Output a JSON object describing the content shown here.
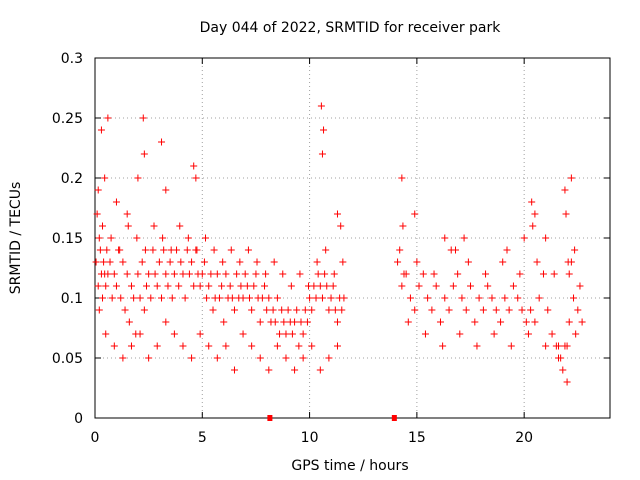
{
  "chart_data": {
    "type": "scatter",
    "title": "Day 044 of 2022, SRMTID for receiver park",
    "xlabel": "GPS time / hours",
    "ylabel": "SRMTID / TECUs",
    "xlim": [
      0,
      24
    ],
    "ylim": [
      0,
      0.3
    ],
    "x_ticks": [
      0,
      5,
      10,
      15,
      20
    ],
    "x_tick_labels": [
      "0",
      "5",
      "10",
      "15",
      "20"
    ],
    "y_ticks": [
      0,
      0.05,
      0.1,
      0.15,
      0.2,
      0.25,
      0.3
    ],
    "y_tick_labels": [
      "0",
      "0.05",
      "0.1",
      "0.15",
      "0.2",
      "0.25",
      "0.3"
    ],
    "grid": true,
    "marker": "+",
    "color": "#ff0000",
    "gap_markers_x": [
      8.15,
      13.95
    ],
    "series": [
      {
        "name": "SRMTID",
        "x": [
          0.05,
          0.1,
          0.15,
          0.2,
          0.25,
          0.3,
          0.35,
          0.4,
          0.45,
          0.5,
          0.55,
          0.6,
          0.7,
          0.8,
          0.9,
          1.0,
          1.1,
          1.2,
          1.3,
          1.4,
          1.5,
          1.6,
          1.7,
          1.8,
          1.9,
          2.0,
          2.1,
          2.2,
          2.3,
          2.4,
          2.5,
          2.6,
          2.7,
          2.8,
          2.9,
          3.0,
          3.1,
          3.2,
          3.3,
          3.4,
          3.5,
          3.6,
          3.7,
          3.8,
          3.9,
          4.0,
          4.1,
          4.2,
          4.3,
          4.4,
          4.5,
          4.6,
          4.7,
          4.8,
          4.9,
          5.0,
          5.1,
          5.2,
          5.3,
          5.4,
          5.5,
          5.6,
          5.7,
          5.8,
          5.9,
          6.0,
          6.1,
          6.2,
          6.3,
          6.4,
          6.5,
          6.6,
          6.7,
          6.8,
          6.9,
          7.0,
          7.1,
          7.2,
          7.3,
          7.4,
          7.5,
          7.6,
          7.7,
          7.8,
          7.9,
          8.0,
          8.1,
          8.2,
          8.3,
          8.4,
          8.5,
          8.6,
          8.7,
          8.8,
          8.9,
          9.0,
          9.1,
          9.2,
          9.3,
          9.4,
          9.5,
          9.6,
          9.7,
          9.8,
          9.9,
          10.0,
          10.1,
          10.2,
          10.3,
          10.4,
          10.5,
          10.6,
          10.7,
          10.8,
          10.9,
          11.0,
          11.1,
          11.2,
          11.3,
          11.4,
          11.5,
          11.6,
          0.15,
          0.3,
          0.45,
          0.6,
          1.0,
          1.5,
          2.0,
          2.25,
          2.3,
          3.1,
          3.3,
          4.6,
          4.7,
          10.55,
          10.6,
          10.65,
          11.3,
          11.45,
          14.1,
          14.3,
          14.5,
          14.7,
          14.9,
          15.1,
          15.3,
          15.5,
          15.7,
          15.9,
          16.1,
          16.3,
          16.5,
          16.7,
          16.9,
          17.1,
          17.3,
          17.5,
          17.7,
          17.9,
          18.1,
          18.3,
          18.5,
          18.7,
          18.9,
          19.1,
          19.3,
          19.5,
          19.7,
          19.9,
          20.1,
          20.3,
          20.5,
          20.7,
          20.9,
          21.1,
          21.3,
          21.5,
          21.7,
          21.9,
          22.1,
          22.3,
          22.5,
          22.7,
          14.2,
          14.4,
          14.6,
          15.0,
          15.4,
          15.8,
          16.2,
          16.6,
          17.0,
          17.4,
          17.8,
          18.2,
          18.6,
          19.0,
          19.4,
          19.8,
          20.2,
          20.6,
          21.0,
          21.4,
          21.6,
          21.8,
          22.0,
          22.2,
          22.4,
          22.6,
          14.3,
          14.35,
          14.9,
          16.3,
          16.8,
          17.2,
          19.2,
          20.0,
          20.35,
          20.4,
          20.5,
          21.0,
          21.6,
          22.0,
          21.9,
          21.95,
          22.05,
          22.1,
          22.2,
          22.35,
          0.2,
          0.5,
          0.9,
          1.3,
          1.7,
          2.1,
          2.5,
          2.9,
          3.3,
          3.7,
          4.1,
          4.5,
          4.9,
          5.3,
          5.7,
          6.1,
          6.5,
          6.9,
          7.3,
          7.7,
          8.1,
          8.5,
          8.9,
          9.3,
          9.7,
          10.1,
          10.5,
          10.9,
          11.3,
          0.35,
          0.75,
          1.15,
          1.55,
          1.95,
          2.35,
          2.75,
          3.15,
          3.55,
          3.95,
          4.35,
          4.75,
          5.15,
          5.55,
          5.95,
          6.35,
          6.75,
          7.15,
          7.55,
          7.95,
          8.35,
          8.75,
          9.15,
          9.55,
          9.95,
          10.35,
          10.75,
          11.15,
          11.55
        ],
        "y": [
          0.13,
          0.17,
          0.11,
          0.15,
          0.14,
          0.12,
          0.1,
          0.13,
          0.12,
          0.11,
          0.14,
          0.12,
          0.13,
          0.1,
          0.12,
          0.11,
          0.14,
          0.1,
          0.13,
          0.09,
          0.12,
          0.08,
          0.11,
          0.1,
          0.07,
          0.12,
          0.1,
          0.13,
          0.09,
          0.11,
          0.12,
          0.1,
          0.14,
          0.12,
          0.11,
          0.13,
          0.1,
          0.14,
          0.12,
          0.11,
          0.13,
          0.1,
          0.12,
          0.14,
          0.11,
          0.13,
          0.12,
          0.1,
          0.14,
          0.12,
          0.13,
          0.11,
          0.14,
          0.12,
          0.11,
          0.12,
          0.13,
          0.1,
          0.11,
          0.12,
          0.09,
          0.1,
          0.12,
          0.1,
          0.11,
          0.08,
          0.12,
          0.1,
          0.11,
          0.1,
          0.09,
          0.12,
          0.1,
          0.11,
          0.1,
          0.12,
          0.11,
          0.1,
          0.09,
          0.11,
          0.12,
          0.1,
          0.08,
          0.1,
          0.11,
          0.09,
          0.1,
          0.08,
          0.09,
          0.08,
          0.1,
          0.07,
          0.09,
          0.08,
          0.07,
          0.09,
          0.08,
          0.07,
          0.08,
          0.09,
          0.06,
          0.08,
          0.07,
          0.09,
          0.08,
          0.1,
          0.09,
          0.11,
          0.1,
          0.12,
          0.11,
          0.1,
          0.12,
          0.11,
          0.09,
          0.1,
          0.11,
          0.09,
          0.08,
          0.1,
          0.09,
          0.1,
          0.19,
          0.24,
          0.2,
          0.25,
          0.18,
          0.17,
          0.2,
          0.25,
          0.22,
          0.23,
          0.19,
          0.21,
          0.2,
          0.26,
          0.22,
          0.24,
          0.17,
          0.16,
          0.13,
          0.11,
          0.12,
          0.1,
          0.09,
          0.11,
          0.12,
          0.1,
          0.09,
          0.11,
          0.08,
          0.1,
          0.09,
          0.11,
          0.12,
          0.1,
          0.09,
          0.11,
          0.08,
          0.1,
          0.09,
          0.11,
          0.1,
          0.09,
          0.08,
          0.1,
          0.09,
          0.11,
          0.1,
          0.09,
          0.08,
          0.09,
          0.08,
          0.1,
          0.12,
          0.09,
          0.07,
          0.06,
          0.05,
          0.06,
          0.08,
          0.1,
          0.09,
          0.08,
          0.14,
          0.12,
          0.08,
          0.13,
          0.07,
          0.12,
          0.06,
          0.14,
          0.07,
          0.13,
          0.06,
          0.12,
          0.07,
          0.13,
          0.06,
          0.12,
          0.07,
          0.13,
          0.06,
          0.12,
          0.05,
          0.04,
          0.06,
          0.13,
          0.07,
          0.11,
          0.2,
          0.16,
          0.17,
          0.15,
          0.14,
          0.15,
          0.14,
          0.15,
          0.18,
          0.16,
          0.17,
          0.15,
          0.06,
          0.03,
          0.19,
          0.17,
          0.13,
          0.12,
          0.2,
          0.14,
          0.09,
          0.07,
          0.06,
          0.05,
          0.06,
          0.07,
          0.05,
          0.06,
          0.08,
          0.07,
          0.06,
          0.05,
          0.07,
          0.06,
          0.05,
          0.06,
          0.04,
          0.07,
          0.06,
          0.05,
          0.04,
          0.06,
          0.05,
          0.04,
          0.05,
          0.06,
          0.04,
          0.05,
          0.06,
          0.16,
          0.15,
          0.14,
          0.16,
          0.15,
          0.14,
          0.16,
          0.15,
          0.14,
          0.16,
          0.15,
          0.14,
          0.15,
          0.14,
          0.13,
          0.14,
          0.13,
          0.14,
          0.13,
          0.12,
          0.13,
          0.12,
          0.11,
          0.12,
          0.11,
          0.13,
          0.14,
          0.12,
          0.13
        ]
      }
    ]
  }
}
